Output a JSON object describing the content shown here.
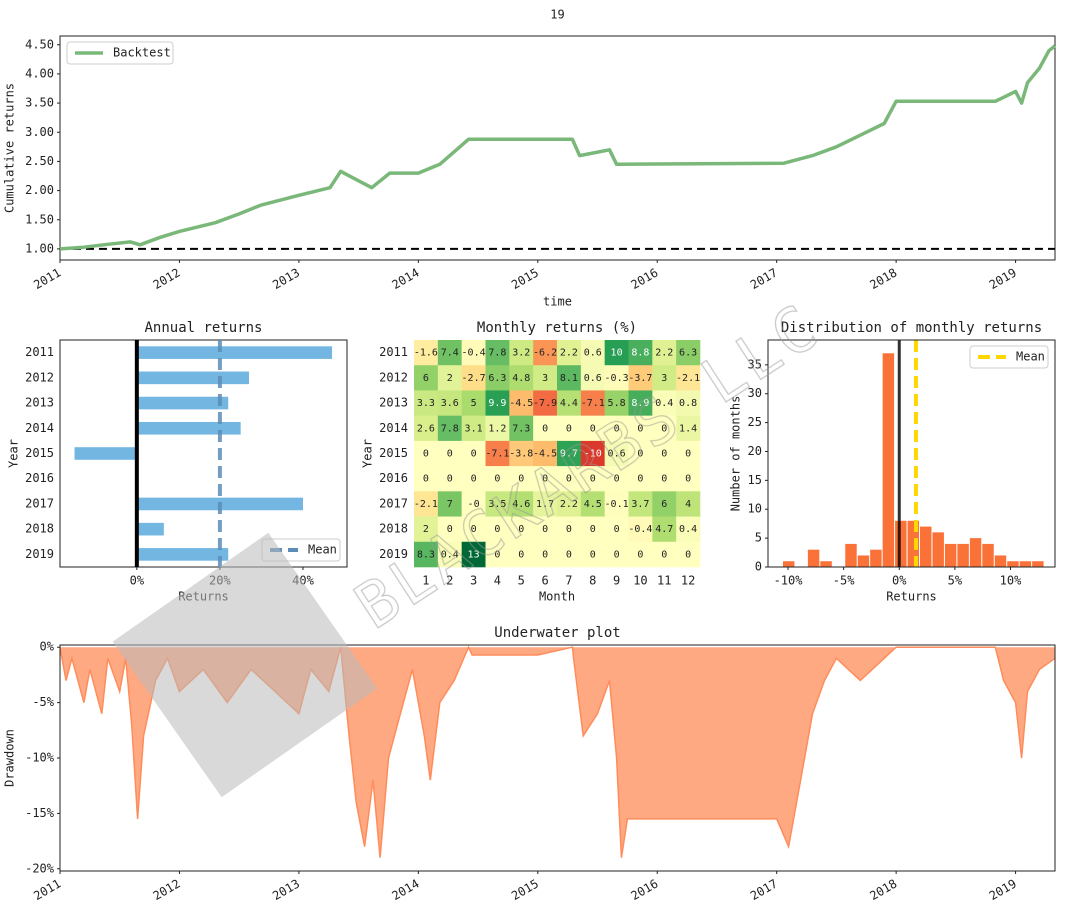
{
  "watermark": "BLACKARBS LLC",
  "chart_data": [
    {
      "type": "line",
      "title": "19",
      "xlabel": "time",
      "ylabel": "Cumulative returns",
      "legend": "upper left",
      "hline": 1,
      "x": [
        2011,
        2011.2,
        2011.4,
        2011.59,
        2011.67,
        2011.84,
        2012,
        2012.3,
        2012.5,
        2012.68,
        2013,
        2013.26,
        2013.35,
        2013.47,
        2013.61,
        2013.76,
        2014,
        2014.18,
        2014.42,
        2015.29,
        2015.35,
        2015.6,
        2015.66,
        2017.06,
        2017.3,
        2017.5,
        2017.7,
        2017.9,
        2018,
        2018.83,
        2018.9,
        2019,
        2019.05,
        2019.1,
        2019.2,
        2019.28,
        2019.33
      ],
      "series": [
        {
          "name": "Backtest",
          "color": "#7ab87a",
          "values": [
            1,
            1.03,
            1.08,
            1.12,
            1.07,
            1.2,
            1.3,
            1.45,
            1.6,
            1.75,
            1.92,
            2.05,
            2.33,
            2.2,
            2.05,
            2.3,
            2.3,
            2.45,
            2.88,
            2.88,
            2.6,
            2.7,
            2.45,
            2.47,
            2.6,
            2.75,
            2.95,
            3.15,
            3.53,
            3.53,
            3.6,
            3.7,
            3.5,
            3.85,
            4.1,
            4.4,
            4.48
          ]
        }
      ],
      "xlim": [
        2011,
        2019.33
      ],
      "ylim": [
        0.81,
        4.65
      ],
      "xticks": [
        2011,
        2012,
        2013,
        2014,
        2015,
        2016,
        2017,
        2018,
        2019
      ],
      "yticks": [
        {
          "value": 1,
          "label": "1.00"
        },
        {
          "value": 1.5,
          "label": "1.50"
        },
        {
          "value": 2,
          "label": "2.00"
        },
        {
          "value": 2.5,
          "label": "2.50"
        },
        {
          "value": 3,
          "label": "3.00"
        },
        {
          "value": 3.5,
          "label": "3.50"
        },
        {
          "value": 4,
          "label": "4.00"
        },
        {
          "value": 4.5,
          "label": "4.50"
        }
      ]
    },
    {
      "type": "hbar",
      "title": "Annual returns",
      "xlabel": "Returns",
      "ylabel": "Year",
      "legend": "lower right",
      "vline": 0,
      "categories": [
        "2011",
        "2012",
        "2013",
        "2014",
        "2015",
        "2016",
        "2017",
        "2018",
        "2019"
      ],
      "values": [
        47,
        27,
        22,
        25,
        -15,
        0,
        40,
        6.5,
        22
      ],
      "color": "#74b6e2",
      "mean": {
        "name": "Mean",
        "value": 20,
        "color": "#5b8db8"
      },
      "xlim": [
        -18.5,
        50.6
      ],
      "xticks": [
        {
          "value": 0,
          "label": "0%"
        },
        {
          "value": 20,
          "label": "20%"
        },
        {
          "value": 40,
          "label": "40%"
        }
      ]
    },
    {
      "type": "heatmap",
      "title": "Monthly returns (%)",
      "xlabel": "Month",
      "ylabel": "Year",
      "colormap": "RdYlGn",
      "clim": [
        -13,
        13
      ],
      "categories": [
        1,
        2,
        3,
        4,
        5,
        6,
        7,
        8,
        9,
        10,
        11,
        12
      ],
      "y_categories": [
        "2011",
        "2012",
        "2013",
        "2014",
        "2015",
        "2016",
        "2017",
        "2018",
        "2019"
      ],
      "values": [
        [
          -1.6,
          7.4,
          -0.4,
          7.8,
          3.2,
          -6.2,
          2.2,
          0.6,
          10,
          8.8,
          2.2,
          6.3
        ],
        [
          6,
          2,
          -2.7,
          6.3,
          4.8,
          3,
          8.1,
          0.6,
          -0.3,
          -3.7,
          3,
          -2.1
        ],
        [
          3.3,
          3.6,
          5,
          9.9,
          -4.5,
          -7.9,
          4.4,
          -7.1,
          5.8,
          8.9,
          0.4,
          0.8
        ],
        [
          2.6,
          7.8,
          3.1,
          1.2,
          7.3,
          0,
          0,
          0,
          0,
          0,
          0,
          1.4
        ],
        [
          0,
          0,
          0,
          -7.1,
          -3.8,
          -4.5,
          9.7,
          -10,
          0.6,
          0,
          0,
          0
        ],
        [
          0,
          0,
          0,
          0,
          0,
          0,
          0,
          0,
          0,
          0,
          0,
          0
        ],
        [
          -2.1,
          7,
          0,
          3.5,
          4.6,
          1.7,
          2.2,
          4.5,
          -0.1,
          3.7,
          6,
          4
        ],
        [
          2,
          0,
          0,
          0,
          0,
          0,
          0,
          0,
          0,
          -0.4,
          4.7,
          0.4
        ],
        [
          8.3,
          0.4,
          13,
          0,
          0,
          0,
          0,
          0,
          0,
          0,
          0,
          0
        ]
      ],
      "value_labels": [
        [
          "-1.6",
          "7.4",
          "-0.4",
          "7.8",
          "3.2",
          "-6.2",
          "2.2",
          "0.6",
          "10",
          "8.8",
          "2.2",
          "6.3"
        ],
        [
          "6",
          "2",
          "-2.7",
          "6.3",
          "4.8",
          "3",
          "8.1",
          "0.6",
          "-0.3",
          "-3.7",
          "3",
          "-2.1"
        ],
        [
          "3.3",
          "3.6",
          "5",
          "9.9",
          "-4.5",
          "-7.9",
          "4.4",
          "-7.1",
          "5.8",
          "8.9",
          "0.4",
          "0.8"
        ],
        [
          "2.6",
          "7.8",
          "3.1",
          "1.2",
          "7.3",
          "0",
          "0",
          "0",
          "0",
          "0",
          "0",
          "1.4"
        ],
        [
          "0",
          "0",
          "0",
          "-7.1",
          "-3.8",
          "-4.5",
          "9.7",
          "-10",
          "0.6",
          "0",
          "0",
          "0"
        ],
        [
          "0",
          "0",
          "0",
          "0",
          "0",
          "0",
          "0",
          "0",
          "0",
          "0",
          "0",
          "0"
        ],
        [
          "-2.1",
          "7",
          "-0",
          "3.5",
          "4.6",
          "1.7",
          "2.2",
          "4.5",
          "-0.1",
          "3.7",
          "6",
          "4"
        ],
        [
          "2",
          "0",
          "0",
          "0",
          "0",
          "0",
          "0",
          "0",
          "0",
          "-0.4",
          "4.7",
          "0.4"
        ],
        [
          "8.3",
          "0.4",
          "13",
          "0",
          "0",
          "0",
          "0",
          "0",
          "0",
          "0",
          "0",
          "0"
        ]
      ]
    },
    {
      "type": "histogram",
      "title": "Distribution of monthly returns",
      "xlabel": "Returns",
      "ylabel": "Number of months",
      "legend": "upper right",
      "vline": 0,
      "bins": [
        -10.5,
        -9.38,
        -8.26,
        -7.14,
        -6.02,
        -4.9,
        -3.78,
        -2.66,
        -1.54,
        -0.42,
        0.7,
        1.82,
        2.94,
        4.06,
        5.18,
        6.3,
        7.42,
        8.54,
        9.66,
        10.78,
        11.9,
        13.02
      ],
      "values": [
        1,
        0,
        3,
        1,
        0,
        4,
        2,
        3,
        37,
        8,
        8,
        7,
        6,
        4,
        4,
        5,
        4,
        2,
        1,
        1,
        1
      ],
      "color": "#fa6a2c",
      "mean": {
        "name": "Mean",
        "value": 1.5,
        "color": "#ffd700"
      },
      "xlim": [
        -11.8,
        14
      ],
      "ylim": [
        0,
        39.3
      ],
      "xticks": [
        {
          "value": -10,
          "label": "-10%"
        },
        {
          "value": -5,
          "label": "-5%"
        },
        {
          "value": 0,
          "label": "0%"
        },
        {
          "value": 5,
          "label": "5%"
        },
        {
          "value": 10,
          "label": "10%"
        }
      ],
      "yticks": [
        0,
        5,
        10,
        15,
        20,
        25,
        30,
        35
      ]
    },
    {
      "type": "area",
      "title": "Underwater plot",
      "ylabel": "Drawdown",
      "color": "#ff8c5a",
      "x": [
        2011,
        2011.05,
        2011.1,
        2011.2,
        2011.25,
        2011.35,
        2011.4,
        2011.5,
        2011.55,
        2011.6,
        2011.65,
        2011.7,
        2011.8,
        2011.9,
        2012,
        2012.2,
        2012.4,
        2012.6,
        2012.8,
        2013,
        2013.1,
        2013.25,
        2013.35,
        2013.42,
        2013.48,
        2013.55,
        2013.62,
        2013.68,
        2013.75,
        2013.85,
        2013.95,
        2014.05,
        2014.1,
        2014.18,
        2014.3,
        2014.42,
        2014.45,
        2015,
        2015.29,
        2015.3,
        2015.38,
        2015.5,
        2015.6,
        2015.66,
        2015.7,
        2015.75,
        2017,
        2017.1,
        2017.2,
        2017.3,
        2017.4,
        2017.5,
        2017.7,
        2017.9,
        2018,
        2018.83,
        2018.9,
        2019,
        2019.05,
        2019.1,
        2019.2,
        2019.33
      ],
      "values": [
        0,
        -3,
        -1,
        -5,
        -2,
        -6,
        -1,
        -4,
        -1,
        -7,
        -15.5,
        -8,
        -3,
        -1,
        -4,
        -2,
        -5,
        -2,
        -4,
        -6,
        -2,
        -4,
        0,
        -8,
        -14,
        -18,
        -12,
        -19,
        -10,
        -6,
        -2,
        -8,
        -12,
        -5,
        -3,
        0,
        -0.7,
        -0.7,
        0,
        -1,
        -8,
        -6,
        -3,
        -10,
        -19,
        -15.5,
        -15.5,
        -18,
        -12,
        -6,
        -3,
        -1,
        -3,
        -1,
        0,
        0,
        -3,
        -5,
        -10,
        -4,
        -2,
        -1
      ],
      "xlim": [
        2011,
        2019.33
      ],
      "ylim": [
        -20.2,
        0.2
      ],
      "xticks": [
        2011,
        2012,
        2013,
        2014,
        2015,
        2016,
        2017,
        2018,
        2019
      ],
      "yticks": [
        {
          "value": 0,
          "label": "0%"
        },
        {
          "value": -5,
          "label": "-5%"
        },
        {
          "value": -10,
          "label": "-10%"
        },
        {
          "value": -15,
          "label": "-15%"
        },
        {
          "value": -20,
          "label": "-20%"
        }
      ]
    }
  ]
}
